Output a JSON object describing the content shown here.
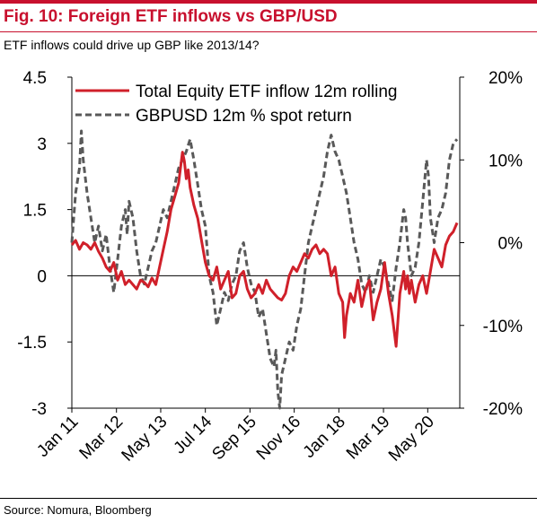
{
  "title": "Fig. 10: Foreign ETF inflows vs GBP/USD",
  "subtitle": "ETF inflows could drive up GBP like 2013/14?",
  "source": "Source: Nomura, Bloomberg",
  "colors": {
    "brand": "#c8102e",
    "equity_line": "#d0202a",
    "gbp_line": "#595959"
  },
  "chart_data": {
    "type": "line",
    "title": "Fig. 10: Foreign ETF inflows vs GBP/USD",
    "subtitle": "ETF inflows could drive up GBP like 2013/14?",
    "grid": false,
    "legend_placement": "top",
    "y_left": {
      "ticks": [
        "4.5",
        "3",
        "1.5",
        "0",
        "-1.5",
        "-3"
      ],
      "range": [
        -3,
        4.5
      ]
    },
    "y_right": {
      "ticks": [
        "20%",
        "10%",
        "0%",
        "-10%",
        "-20%"
      ],
      "range": [
        -20,
        20
      ]
    },
    "x_range": [
      2011.0,
      2021.17
    ],
    "x_ticks": [
      {
        "label": "Jan 11",
        "x": 2011.0
      },
      {
        "label": "Mar 12",
        "x": 2012.17
      },
      {
        "label": "May 13",
        "x": 2013.33
      },
      {
        "label": "Jul 14",
        "x": 2014.5
      },
      {
        "label": "Sep 15",
        "x": 2015.67
      },
      {
        "label": "Nov 16",
        "x": 2016.83
      },
      {
        "label": "Jan 18",
        "x": 2018.0
      },
      {
        "label": "Mar 19",
        "x": 2019.17
      },
      {
        "label": "May 20",
        "x": 2020.33
      }
    ],
    "series": [
      {
        "name": "Total Equity ETF inflow 12m rolling",
        "axis": "left",
        "style": "solid",
        "points": [
          [
            2011.0,
            0.7
          ],
          [
            2011.1,
            0.8
          ],
          [
            2011.2,
            0.6
          ],
          [
            2011.3,
            0.75
          ],
          [
            2011.4,
            0.7
          ],
          [
            2011.5,
            0.6
          ],
          [
            2011.6,
            0.75
          ],
          [
            2011.7,
            0.55
          ],
          [
            2011.8,
            0.4
          ],
          [
            2011.9,
            0.2
          ],
          [
            2012.0,
            0.1
          ],
          [
            2012.1,
            0.3
          ],
          [
            2012.2,
            -0.1
          ],
          [
            2012.3,
            0.1
          ],
          [
            2012.4,
            -0.2
          ],
          [
            2012.5,
            -0.1
          ],
          [
            2012.6,
            -0.2
          ],
          [
            2012.7,
            -0.3
          ],
          [
            2012.8,
            -0.1
          ],
          [
            2012.9,
            -0.15
          ],
          [
            2013.0,
            -0.25
          ],
          [
            2013.1,
            -0.05
          ],
          [
            2013.2,
            -0.2
          ],
          [
            2013.3,
            0.2
          ],
          [
            2013.4,
            0.6
          ],
          [
            2013.5,
            1.0
          ],
          [
            2013.6,
            1.5
          ],
          [
            2013.7,
            1.8
          ],
          [
            2013.8,
            2.1
          ],
          [
            2013.9,
            2.8
          ],
          [
            2013.95,
            2.6
          ],
          [
            2014.0,
            2.2
          ],
          [
            2014.05,
            2.4
          ],
          [
            2014.1,
            2.0
          ],
          [
            2014.2,
            1.6
          ],
          [
            2014.3,
            1.3
          ],
          [
            2014.4,
            0.8
          ],
          [
            2014.5,
            0.3
          ],
          [
            2014.6,
            0.0
          ],
          [
            2014.7,
            -0.1
          ],
          [
            2014.8,
            0.2
          ],
          [
            2014.9,
            -0.3
          ],
          [
            2015.0,
            -0.1
          ],
          [
            2015.1,
            0.1
          ],
          [
            2015.2,
            -0.5
          ],
          [
            2015.3,
            -0.4
          ],
          [
            2015.4,
            0.0
          ],
          [
            2015.5,
            0.1
          ],
          [
            2015.6,
            -0.3
          ],
          [
            2015.7,
            -0.5
          ],
          [
            2015.8,
            -0.4
          ],
          [
            2015.9,
            -0.2
          ],
          [
            2016.0,
            -0.4
          ],
          [
            2016.1,
            -0.1
          ],
          [
            2016.2,
            -0.3
          ],
          [
            2016.3,
            -0.4
          ],
          [
            2016.4,
            -0.5
          ],
          [
            2016.5,
            -0.55
          ],
          [
            2016.6,
            -0.4
          ],
          [
            2016.7,
            0.0
          ],
          [
            2016.8,
            0.2
          ],
          [
            2016.9,
            0.1
          ],
          [
            2017.0,
            0.3
          ],
          [
            2017.1,
            0.5
          ],
          [
            2017.2,
            0.4
          ],
          [
            2017.3,
            0.6
          ],
          [
            2017.4,
            0.7
          ],
          [
            2017.5,
            0.5
          ],
          [
            2017.6,
            0.6
          ],
          [
            2017.7,
            0.5
          ],
          [
            2017.8,
            0.0
          ],
          [
            2017.9,
            0.2
          ],
          [
            2018.0,
            -0.4
          ],
          [
            2018.1,
            -0.6
          ],
          [
            2018.15,
            -1.4
          ],
          [
            2018.2,
            -0.9
          ],
          [
            2018.3,
            -0.4
          ],
          [
            2018.4,
            -0.6
          ],
          [
            2018.5,
            -0.1
          ],
          [
            2018.6,
            -0.7
          ],
          [
            2018.7,
            -0.3
          ],
          [
            2018.8,
            -0.1
          ],
          [
            2018.9,
            -1.0
          ],
          [
            2019.0,
            -0.6
          ],
          [
            2019.1,
            -0.3
          ],
          [
            2019.2,
            0.3
          ],
          [
            2019.3,
            -0.4
          ],
          [
            2019.4,
            -0.9
          ],
          [
            2019.5,
            -1.6
          ],
          [
            2019.6,
            -0.4
          ],
          [
            2019.7,
            0.1
          ],
          [
            2019.75,
            -0.3
          ],
          [
            2019.8,
            0.0
          ],
          [
            2019.85,
            -0.4
          ],
          [
            2019.9,
            -0.1
          ],
          [
            2020.0,
            -0.6
          ],
          [
            2020.1,
            -0.2
          ],
          [
            2020.2,
            0.0
          ],
          [
            2020.3,
            -0.4
          ],
          [
            2020.4,
            0.1
          ],
          [
            2020.5,
            0.6
          ],
          [
            2020.6,
            0.4
          ],
          [
            2020.7,
            0.2
          ],
          [
            2020.8,
            0.7
          ],
          [
            2020.9,
            0.9
          ],
          [
            2021.0,
            1.0
          ],
          [
            2021.1,
            1.2
          ]
        ]
      },
      {
        "name": "GBPUSD 12m % spot return",
        "axis": "right",
        "style": "dashed",
        "points": [
          [
            2011.0,
            0.0
          ],
          [
            2011.05,
            3.0
          ],
          [
            2011.1,
            6.0
          ],
          [
            2011.2,
            9.0
          ],
          [
            2011.25,
            13.5
          ],
          [
            2011.3,
            10.0
          ],
          [
            2011.4,
            6.0
          ],
          [
            2011.5,
            3.0
          ],
          [
            2011.6,
            0.0
          ],
          [
            2011.7,
            2.0
          ],
          [
            2011.8,
            -1.0
          ],
          [
            2011.9,
            1.0
          ],
          [
            2012.0,
            -3.0
          ],
          [
            2012.1,
            -6.0
          ],
          [
            2012.2,
            -2.0
          ],
          [
            2012.3,
            2.0
          ],
          [
            2012.4,
            4.0
          ],
          [
            2012.45,
            1.0
          ],
          [
            2012.5,
            5.0
          ],
          [
            2012.6,
            3.0
          ],
          [
            2012.7,
            -1.0
          ],
          [
            2012.8,
            -4.0
          ],
          [
            2012.9,
            -5.0
          ],
          [
            2013.0,
            -3.0
          ],
          [
            2013.1,
            -1.0
          ],
          [
            2013.2,
            0.0
          ],
          [
            2013.3,
            2.0
          ],
          [
            2013.4,
            4.0
          ],
          [
            2013.5,
            3.0
          ],
          [
            2013.6,
            5.0
          ],
          [
            2013.7,
            7.0
          ],
          [
            2013.8,
            9.0
          ],
          [
            2013.9,
            10.0
          ],
          [
            2014.0,
            11.0
          ],
          [
            2014.1,
            12.5
          ],
          [
            2014.2,
            10.0
          ],
          [
            2014.3,
            7.0
          ],
          [
            2014.4,
            4.0
          ],
          [
            2014.5,
            2.0
          ],
          [
            2014.6,
            -4.0
          ],
          [
            2014.7,
            -6.0
          ],
          [
            2014.8,
            -10.0
          ],
          [
            2014.9,
            -8.0
          ],
          [
            2015.0,
            -6.0
          ],
          [
            2015.1,
            -7.0
          ],
          [
            2015.2,
            -5.0
          ],
          [
            2015.3,
            -4.0
          ],
          [
            2015.4,
            -1.0
          ],
          [
            2015.5,
            0.0
          ],
          [
            2015.6,
            -3.0
          ],
          [
            2015.7,
            -5.0
          ],
          [
            2015.8,
            -6.0
          ],
          [
            2015.9,
            -9.0
          ],
          [
            2016.0,
            -8.0
          ],
          [
            2016.1,
            -11.0
          ],
          [
            2016.2,
            -14.0
          ],
          [
            2016.3,
            -15.0
          ],
          [
            2016.35,
            -13.0
          ],
          [
            2016.4,
            -18.0
          ],
          [
            2016.45,
            -20.0
          ],
          [
            2016.5,
            -16.0
          ],
          [
            2016.6,
            -14.0
          ],
          [
            2016.7,
            -12.0
          ],
          [
            2016.8,
            -13.0
          ],
          [
            2016.9,
            -10.0
          ],
          [
            2017.0,
            -8.0
          ],
          [
            2017.1,
            -4.0
          ],
          [
            2017.2,
            0.0
          ],
          [
            2017.3,
            2.0
          ],
          [
            2017.4,
            4.0
          ],
          [
            2017.5,
            6.0
          ],
          [
            2017.6,
            8.0
          ],
          [
            2017.7,
            11.0
          ],
          [
            2017.8,
            13.0
          ],
          [
            2017.9,
            11.0
          ],
          [
            2018.0,
            10.0
          ],
          [
            2018.1,
            8.0
          ],
          [
            2018.2,
            6.0
          ],
          [
            2018.3,
            3.0
          ],
          [
            2018.4,
            0.0
          ],
          [
            2018.5,
            -2.0
          ],
          [
            2018.6,
            -5.0
          ],
          [
            2018.7,
            -6.0
          ],
          [
            2018.8,
            -4.0
          ],
          [
            2018.9,
            -6.0
          ],
          [
            2019.0,
            -4.0
          ],
          [
            2019.1,
            -2.0
          ],
          [
            2019.2,
            -3.0
          ],
          [
            2019.3,
            -5.0
          ],
          [
            2019.4,
            -7.0
          ],
          [
            2019.5,
            -3.0
          ],
          [
            2019.6,
            0.0
          ],
          [
            2019.7,
            4.0
          ],
          [
            2019.75,
            3.0
          ],
          [
            2019.8,
            0.0
          ],
          [
            2019.9,
            -4.0
          ],
          [
            2020.0,
            -3.0
          ],
          [
            2020.1,
            0.0
          ],
          [
            2020.2,
            5.0
          ],
          [
            2020.3,
            10.0
          ],
          [
            2020.35,
            8.0
          ],
          [
            2020.4,
            3.0
          ],
          [
            2020.5,
            0.0
          ],
          [
            2020.6,
            3.0
          ],
          [
            2020.7,
            4.0
          ],
          [
            2020.8,
            6.0
          ],
          [
            2020.9,
            10.0
          ],
          [
            2021.0,
            12.0
          ],
          [
            2021.1,
            12.5
          ]
        ]
      }
    ]
  }
}
